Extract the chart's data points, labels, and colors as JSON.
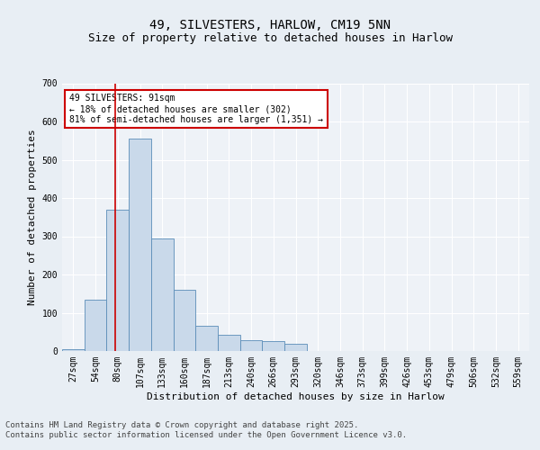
{
  "title1": "49, SILVESTERS, HARLOW, CM19 5NN",
  "title2": "Size of property relative to detached houses in Harlow",
  "xlabel": "Distribution of detached houses by size in Harlow",
  "ylabel": "Number of detached properties",
  "bar_labels": [
    "27sqm",
    "54sqm",
    "80sqm",
    "107sqm",
    "133sqm",
    "160sqm",
    "187sqm",
    "213sqm",
    "240sqm",
    "266sqm",
    "293sqm",
    "320sqm",
    "346sqm",
    "373sqm",
    "399sqm",
    "426sqm",
    "453sqm",
    "479sqm",
    "506sqm",
    "532sqm",
    "559sqm"
  ],
  "bar_values": [
    5,
    135,
    370,
    555,
    295,
    160,
    65,
    42,
    28,
    25,
    20,
    0,
    0,
    0,
    0,
    0,
    0,
    0,
    0,
    0,
    0
  ],
  "bar_color": "#c9d9ea",
  "bar_edge_color": "#5b8db8",
  "annotation_text": "49 SILVESTERS: 91sqm\n← 18% of detached houses are smaller (302)\n81% of semi-detached houses are larger (1,351) →",
  "annotation_box_color": "#ffffff",
  "annotation_box_edge_color": "#cc0000",
  "line_color": "#cc0000",
  "ylim": [
    0,
    700
  ],
  "yticks": [
    0,
    100,
    200,
    300,
    400,
    500,
    600,
    700
  ],
  "bg_color": "#e8eef4",
  "plot_bg_color": "#eef2f7",
  "footer_text": "Contains HM Land Registry data © Crown copyright and database right 2025.\nContains public sector information licensed under the Open Government Licence v3.0.",
  "grid_color": "#ffffff",
  "title_fontsize": 10,
  "subtitle_fontsize": 9,
  "axis_label_fontsize": 8,
  "tick_fontsize": 7,
  "footer_fontsize": 6.5
}
